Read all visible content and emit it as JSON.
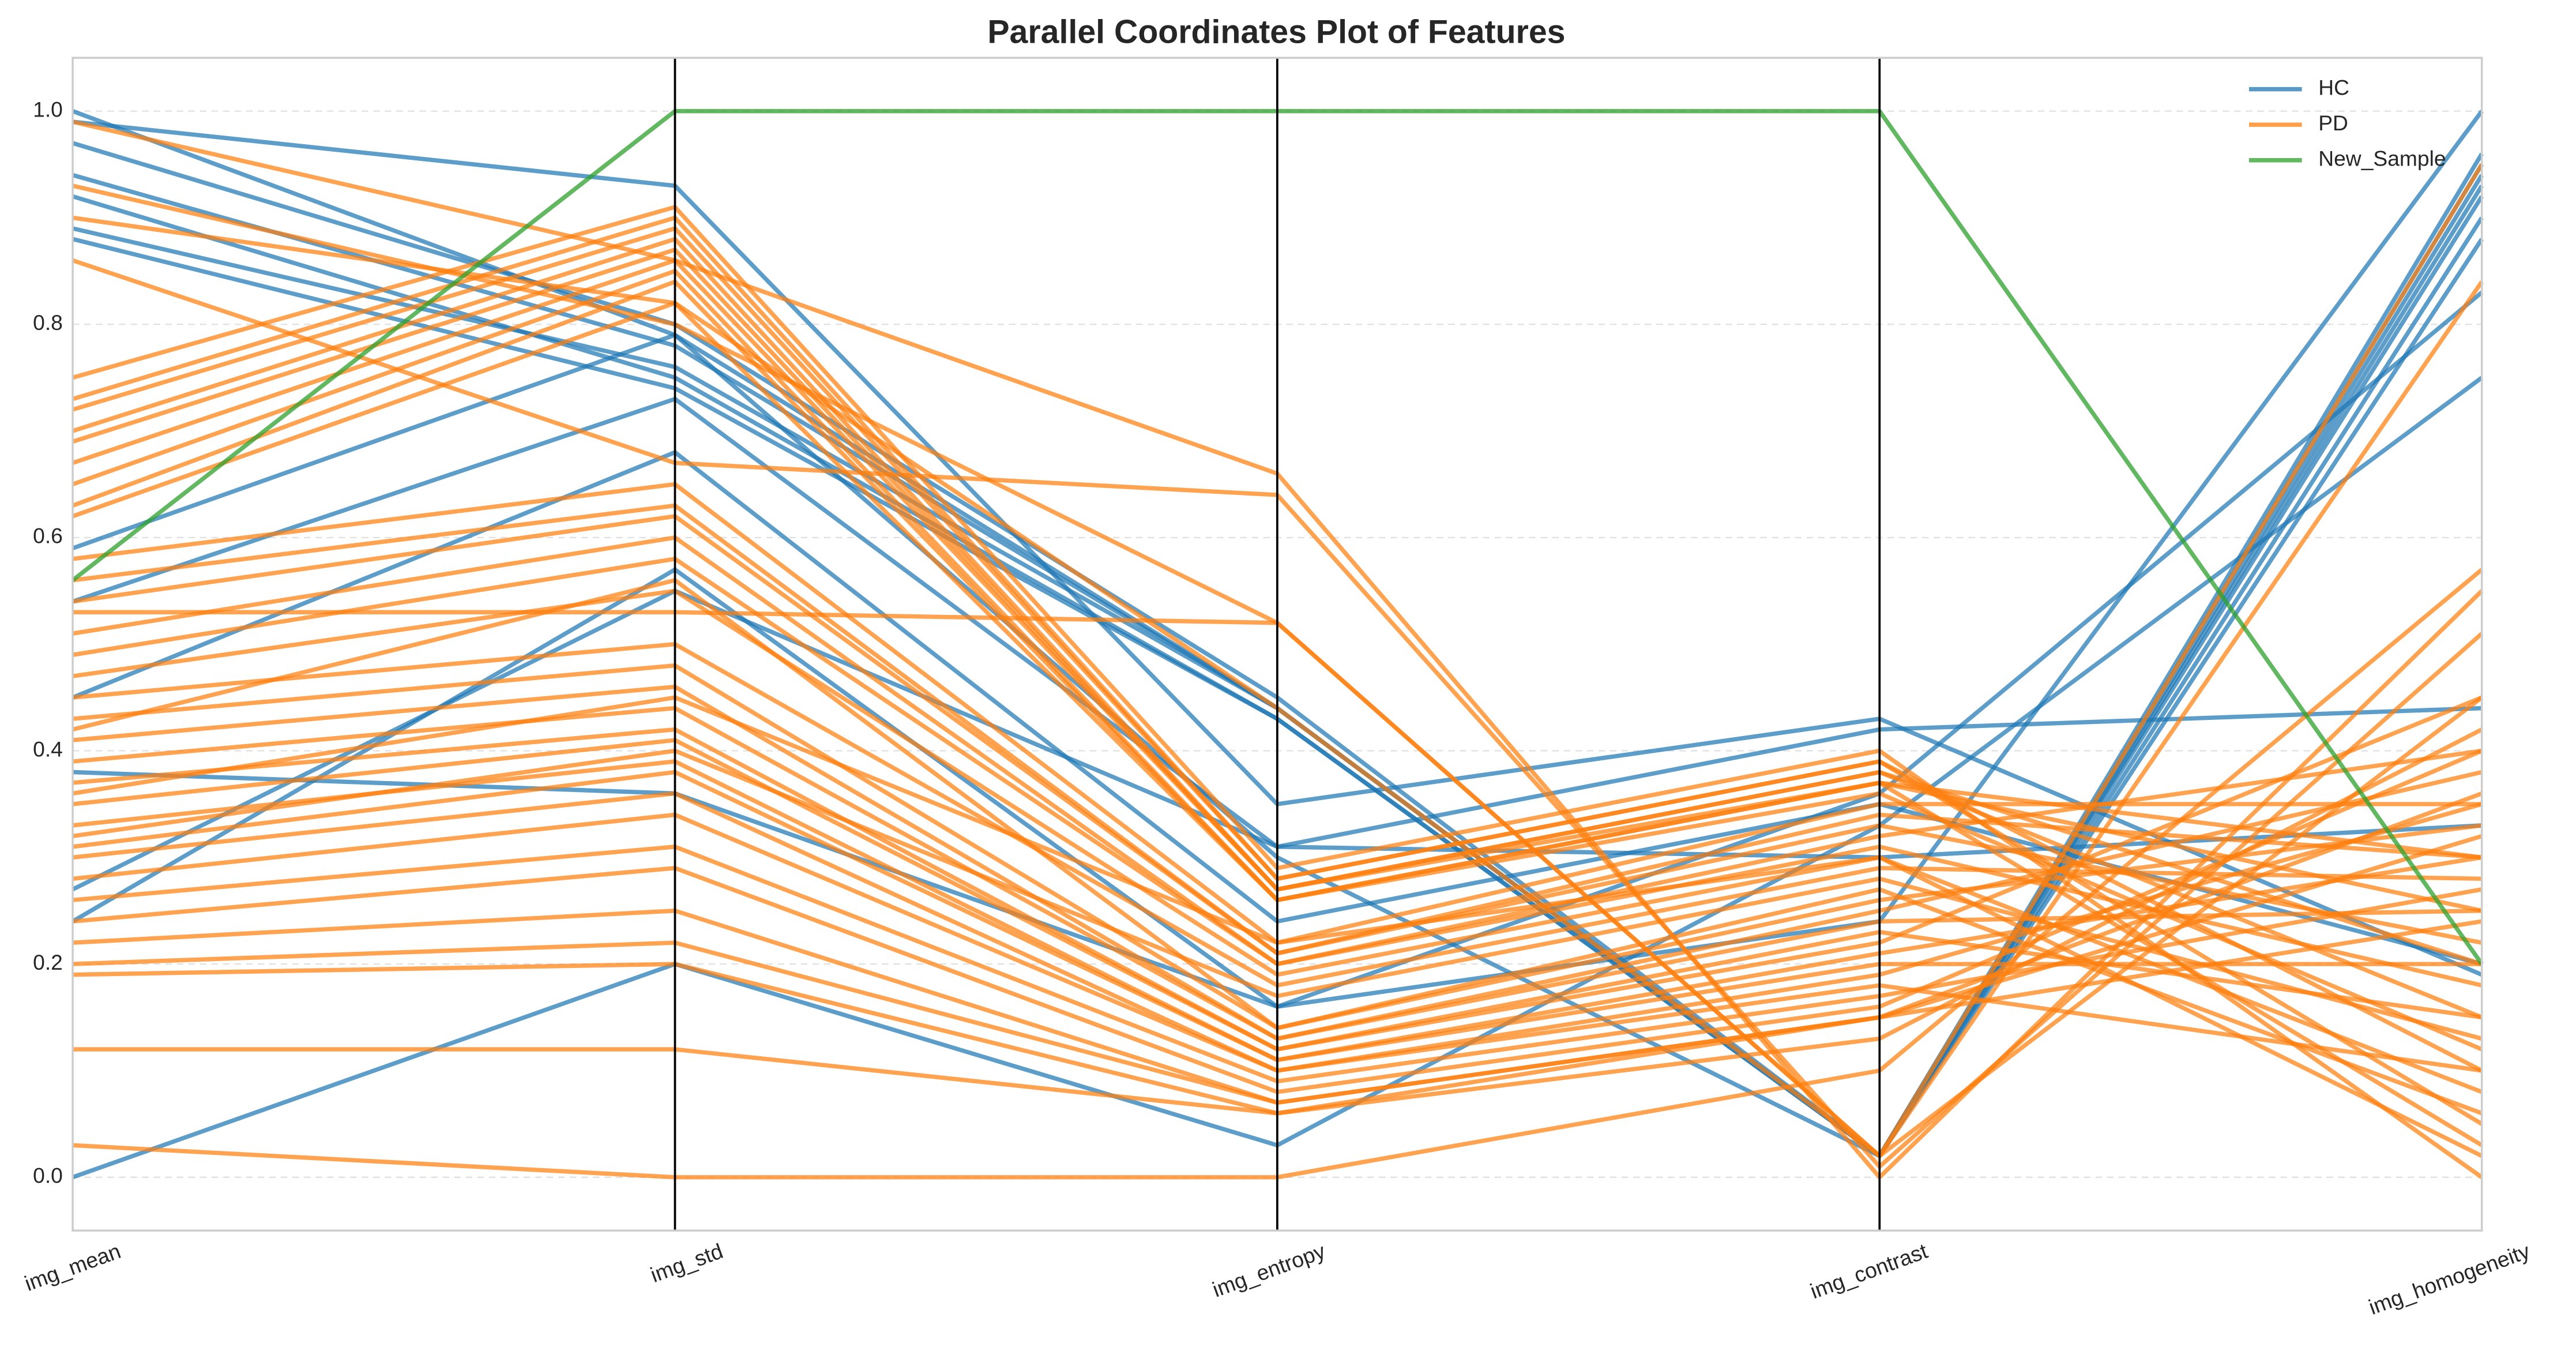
{
  "chart_data": {
    "type": "parallel",
    "title": "Parallel Coordinates Plot of Features",
    "categories": [
      "img_mean",
      "img_std",
      "img_entropy",
      "img_contrast",
      "img_homogeneity"
    ],
    "ylim": [
      -0.05,
      1.05
    ],
    "yticks": [
      {
        "value": 0,
        "label": "0.0"
      },
      0.2,
      0.4,
      0.6,
      0.8,
      {
        "value": 1,
        "label": "1.0"
      }
    ],
    "grid": true,
    "legend": "upper right",
    "series": [
      {
        "name": "HC",
        "color": "#1f77b4",
        "values": [
          [
            1.0,
            0.79,
            0.44,
            0.02,
            0.95
          ],
          [
            0.97,
            0.8,
            0.45,
            0.02,
            0.93
          ],
          [
            0.94,
            0.78,
            0.44,
            0.02,
            0.9
          ],
          [
            0.92,
            0.75,
            0.43,
            0.02,
            0.96
          ],
          [
            0.89,
            0.76,
            0.44,
            0.02,
            0.92
          ],
          [
            0.88,
            0.74,
            0.43,
            0.02,
            0.88
          ],
          [
            0.99,
            0.93,
            0.35,
            0.43,
            0.19
          ],
          [
            0.54,
            0.73,
            0.31,
            0.42,
            0.44
          ],
          [
            0.0,
            0.2,
            0.03,
            0.33,
            0.75
          ],
          [
            0.24,
            0.57,
            0.16,
            0.36,
            0.83
          ],
          [
            0.45,
            0.68,
            0.24,
            0.35,
            0.2
          ],
          [
            0.59,
            0.79,
            0.3,
            0.02,
            0.94
          ],
          [
            0.38,
            0.36,
            0.16,
            0.24,
            1.0
          ],
          [
            0.27,
            0.55,
            0.31,
            0.3,
            0.33
          ]
        ]
      },
      {
        "name": "PD",
        "color": "#ff7f0e",
        "values": [
          [
            0.75,
            0.91,
            0.29,
            0.4,
            0.0
          ],
          [
            0.73,
            0.9,
            0.28,
            0.39,
            0.05
          ],
          [
            0.72,
            0.89,
            0.28,
            0.39,
            0.1
          ],
          [
            0.7,
            0.88,
            0.27,
            0.38,
            0.15
          ],
          [
            0.69,
            0.87,
            0.27,
            0.38,
            0.2
          ],
          [
            0.67,
            0.86,
            0.27,
            0.37,
            0.25
          ],
          [
            0.65,
            0.85,
            0.26,
            0.37,
            0.3
          ],
          [
            0.63,
            0.84,
            0.26,
            0.37,
            0.03
          ],
          [
            0.62,
            0.82,
            0.26,
            0.36,
            0.12
          ],
          [
            0.58,
            0.65,
            0.22,
            0.35,
            0.35
          ],
          [
            0.56,
            0.63,
            0.21,
            0.34,
            0.3
          ],
          [
            0.54,
            0.62,
            0.21,
            0.33,
            0.22
          ],
          [
            0.51,
            0.6,
            0.2,
            0.32,
            0.4
          ],
          [
            0.49,
            0.58,
            0.2,
            0.31,
            0.18
          ],
          [
            0.47,
            0.55,
            0.19,
            0.3,
            0.08
          ],
          [
            0.45,
            0.5,
            0.18,
            0.29,
            0.28
          ],
          [
            0.43,
            0.48,
            0.14,
            0.26,
            0.33
          ],
          [
            0.41,
            0.46,
            0.13,
            0.25,
            0.38
          ],
          [
            0.39,
            0.44,
            0.13,
            0.24,
            0.25
          ],
          [
            0.37,
            0.42,
            0.12,
            0.23,
            0.15
          ],
          [
            0.35,
            0.41,
            0.12,
            0.22,
            0.45
          ],
          [
            0.33,
            0.39,
            0.11,
            0.21,
            0.3
          ],
          [
            0.31,
            0.38,
            0.11,
            0.2,
            0.2
          ],
          [
            0.3,
            0.36,
            0.1,
            0.19,
            0.35
          ],
          [
            0.28,
            0.34,
            0.1,
            0.18,
            0.1
          ],
          [
            0.26,
            0.31,
            0.09,
            0.17,
            0.27
          ],
          [
            0.24,
            0.29,
            0.08,
            0.16,
            0.4
          ],
          [
            0.22,
            0.25,
            0.07,
            0.15,
            0.32
          ],
          [
            0.2,
            0.22,
            0.07,
            0.15,
            0.24
          ],
          [
            0.19,
            0.2,
            0.06,
            0.15,
            0.36
          ],
          [
            0.12,
            0.12,
            0.06,
            0.13,
            0.42
          ],
          [
            0.03,
            0.0,
            0.0,
            0.1,
            0.57
          ],
          [
            0.99,
            0.86,
            0.66,
            0.0,
            0.55
          ],
          [
            0.93,
            0.8,
            0.52,
            0.02,
            0.84
          ],
          [
            0.86,
            0.67,
            0.64,
            0.01,
            0.51
          ],
          [
            0.9,
            0.82,
            0.44,
            0.02,
            0.95
          ],
          [
            0.53,
            0.53,
            0.52,
            0.02,
            0.45
          ],
          [
            0.36,
            0.45,
            0.22,
            0.3,
            0.02
          ],
          [
            0.42,
            0.56,
            0.14,
            0.27,
            0.06
          ],
          [
            0.32,
            0.4,
            0.17,
            0.28,
            0.13
          ]
        ]
      },
      {
        "name": "New_Sample",
        "color": "#2ca02c",
        "values": [
          [
            0.56,
            1.0,
            1.0,
            1.0,
            0.2
          ]
        ]
      }
    ]
  }
}
